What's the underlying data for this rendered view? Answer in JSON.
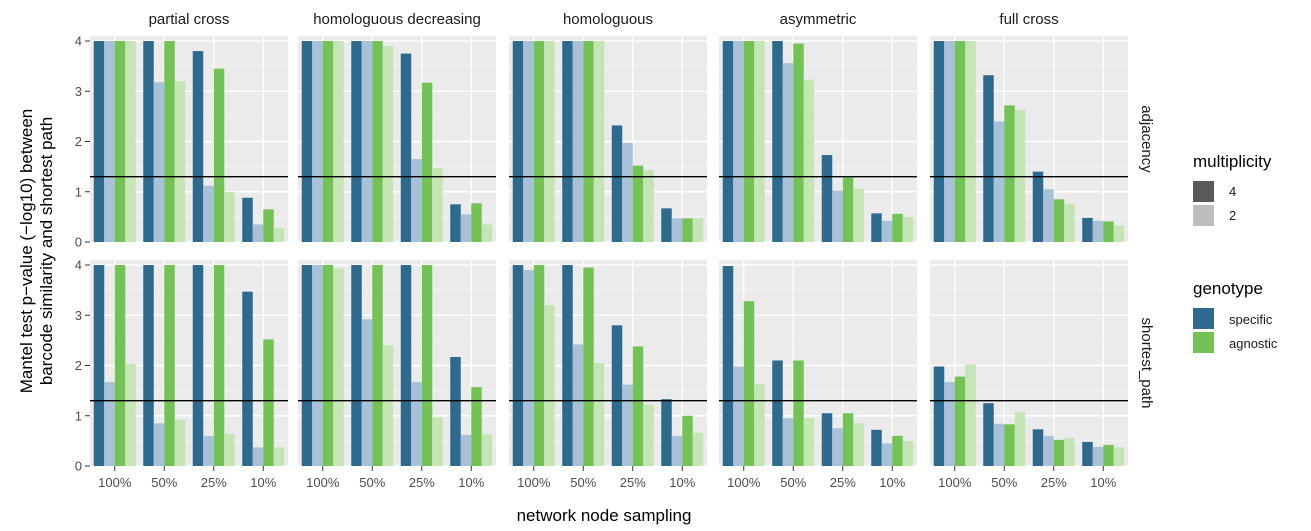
{
  "chart_data": {
    "type": "bar",
    "ylabel_lines": [
      "Mantel test p−value (−log10) between",
      "barcode similarity and shortest path"
    ],
    "xlabel": "network node sampling",
    "columns": [
      "partial cross",
      "homologuous decreasing",
      "homologuous",
      "asymmetric",
      "full cross"
    ],
    "rows": [
      "adjacency",
      "shortest_path"
    ],
    "categories": [
      "100%",
      "50%",
      "25%",
      "10%"
    ],
    "ylim": [
      0,
      4.1
    ],
    "yticks": [
      0,
      1,
      2,
      3,
      4
    ],
    "reference_line": 1.3,
    "grid": true,
    "series": [
      {
        "genotype": "specific",
        "multiplicity": "4"
      },
      {
        "genotype": "specific",
        "multiplicity": "2"
      },
      {
        "genotype": "agnostic",
        "multiplicity": "4"
      },
      {
        "genotype": "agnostic",
        "multiplicity": "2"
      }
    ],
    "colors": {
      "specific_4": "#2e6a8e",
      "specific_2": "#a9c1d8",
      "agnostic_4": "#73c255",
      "agnostic_2": "#c5e5b6"
    },
    "panels": [
      {
        "row": "adjacency",
        "column": "partial cross",
        "values": [
          [
            4,
            4,
            4,
            4
          ],
          [
            4,
            3.18,
            4,
            3.2
          ],
          [
            3.8,
            1.12,
            3.45,
            1.0
          ],
          [
            0.88,
            0.35,
            0.65,
            0.28
          ]
        ]
      },
      {
        "row": "adjacency",
        "column": "homologuous decreasing",
        "values": [
          [
            4,
            4,
            4,
            4
          ],
          [
            4,
            4,
            4,
            3.9
          ],
          [
            3.75,
            1.65,
            3.17,
            1.47
          ],
          [
            0.75,
            0.55,
            0.77,
            0.35
          ]
        ]
      },
      {
        "row": "adjacency",
        "column": "homologuous",
        "values": [
          [
            4,
            4,
            4,
            4
          ],
          [
            4,
            4,
            4,
            4
          ],
          [
            2.32,
            1.97,
            1.52,
            1.43
          ],
          [
            0.67,
            0.47,
            0.47,
            0.47
          ]
        ]
      },
      {
        "row": "adjacency",
        "column": "asymmetric",
        "values": [
          [
            4,
            4,
            4,
            4
          ],
          [
            4,
            3.56,
            3.95,
            3.23
          ],
          [
            1.73,
            1.02,
            1.28,
            1.06
          ],
          [
            0.57,
            0.42,
            0.56,
            0.5
          ]
        ]
      },
      {
        "row": "adjacency",
        "column": "full cross",
        "values": [
          [
            4,
            4,
            4,
            4
          ],
          [
            3.32,
            2.4,
            2.72,
            2.63
          ],
          [
            1.4,
            1.05,
            0.85,
            0.76
          ],
          [
            0.48,
            0.42,
            0.41,
            0.33
          ]
        ]
      },
      {
        "row": "shortest_path",
        "column": "partial cross",
        "values": [
          [
            4,
            1.67,
            4,
            2.03
          ],
          [
            4,
            0.85,
            4,
            0.92
          ],
          [
            4,
            0.6,
            4,
            0.64
          ],
          [
            3.47,
            0.37,
            2.52,
            0.37
          ]
        ]
      },
      {
        "row": "shortest_path",
        "column": "homologuous decreasing",
        "values": [
          [
            4,
            4,
            4,
            3.93
          ],
          [
            4,
            2.92,
            4,
            2.4
          ],
          [
            4,
            1.67,
            4,
            0.97
          ],
          [
            2.17,
            0.62,
            1.57,
            0.63
          ]
        ]
      },
      {
        "row": "shortest_path",
        "column": "homologuous",
        "values": [
          [
            4,
            3.9,
            4,
            3.2
          ],
          [
            4,
            2.42,
            3.95,
            2.05
          ],
          [
            2.8,
            1.62,
            2.38,
            1.22
          ],
          [
            1.33,
            0.6,
            1.0,
            0.66
          ]
        ]
      },
      {
        "row": "shortest_path",
        "column": "asymmetric",
        "values": [
          [
            3.98,
            1.98,
            3.28,
            1.63
          ],
          [
            2.1,
            0.95,
            2.1,
            0.95
          ],
          [
            1.05,
            0.75,
            1.05,
            0.85
          ],
          [
            0.72,
            0.45,
            0.6,
            0.5
          ]
        ]
      },
      {
        "row": "shortest_path",
        "column": "full cross",
        "values": [
          [
            1.98,
            1.67,
            1.78,
            2.02
          ],
          [
            1.25,
            0.84,
            0.83,
            1.07
          ],
          [
            0.73,
            0.6,
            0.52,
            0.56
          ],
          [
            0.48,
            0.38,
            0.42,
            0.37
          ]
        ]
      }
    ]
  },
  "legend": {
    "multiplicity": {
      "title": "multiplicity",
      "items": [
        "4",
        "2"
      ]
    },
    "genotype": {
      "title": "genotype",
      "items": [
        "specific",
        "agnostic"
      ]
    }
  }
}
